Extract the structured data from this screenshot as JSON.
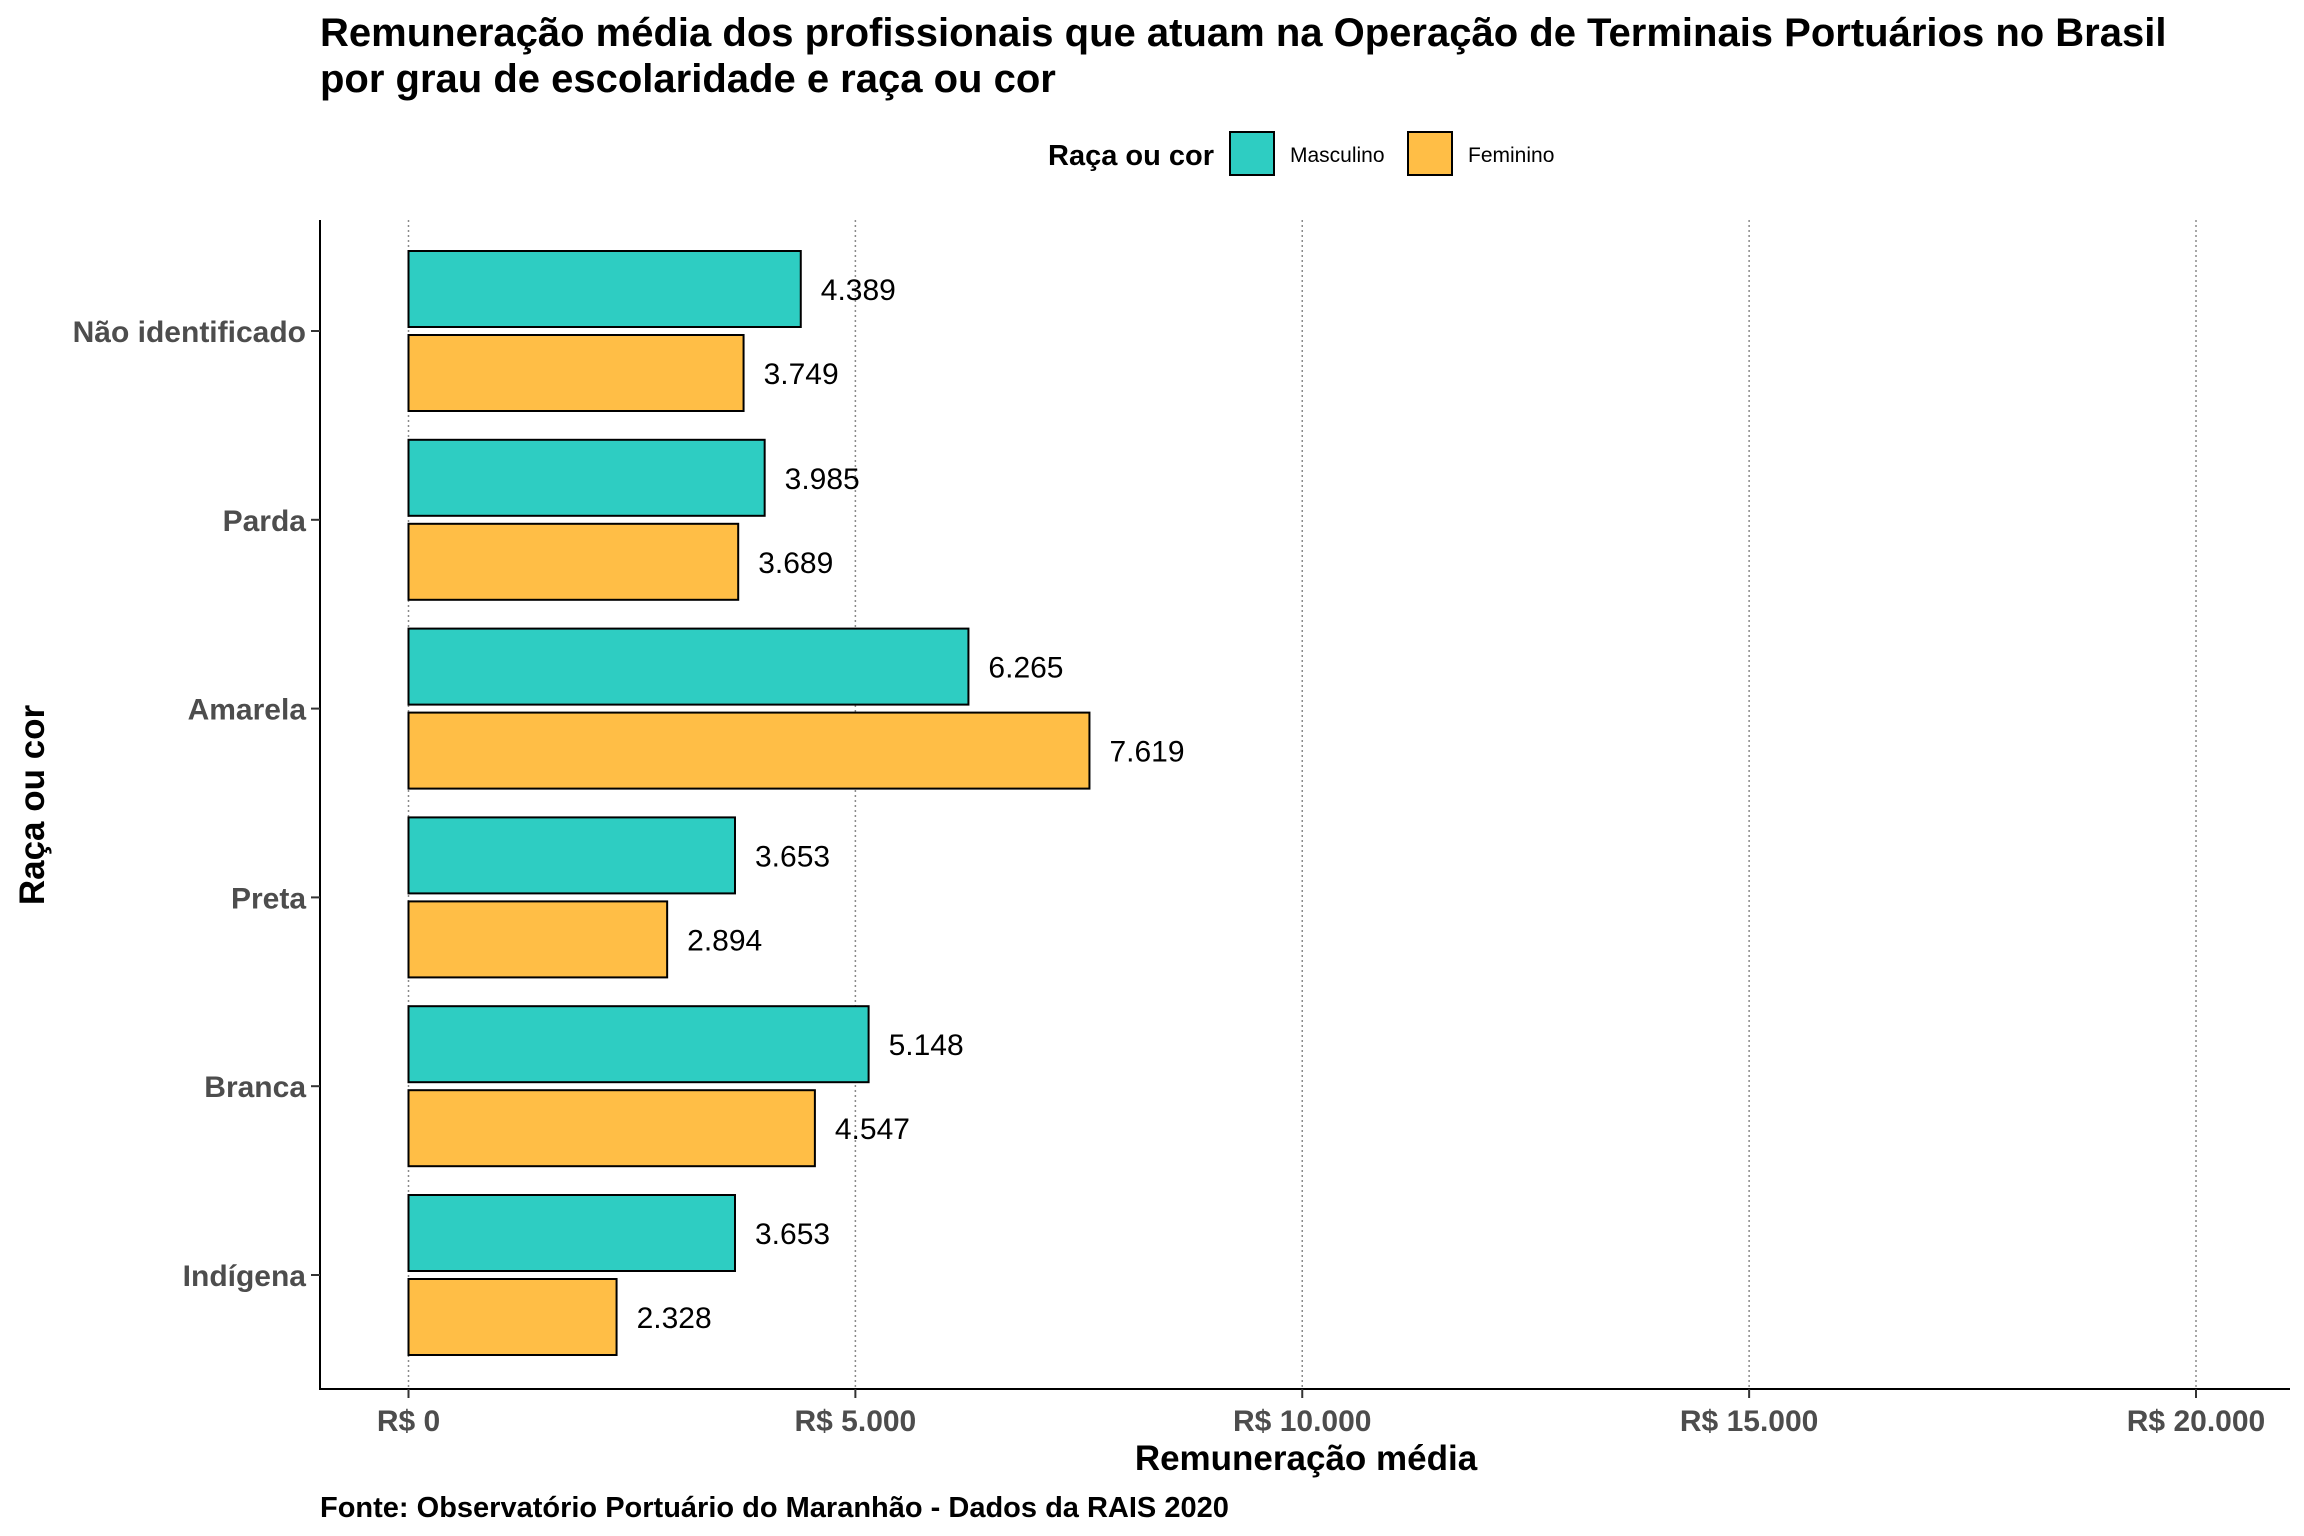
{
  "chart_data": {
    "type": "bar",
    "orientation": "horizontal",
    "title": "Remuneração média dos profissionais que atuam na Operação de Terminais Portuários no Brasil",
    "subtitle": "por grau de escolaridade e raça ou cor",
    "xlabel": "Remuneração média",
    "ylabel": "Raça ou cor",
    "caption": "Fonte: Observatório Portuário do Maranhão - Dados da RAIS 2020",
    "legend": {
      "title": "Raça ou cor",
      "position": "top"
    },
    "categories": [
      "Não identificado",
      "Parda",
      "Amarela",
      "Preta",
      "Branca",
      "Indígena"
    ],
    "series": [
      {
        "name": "Masculino",
        "color": "#2ECDC2",
        "values": [
          4389,
          3985,
          6265,
          3653,
          5148,
          3653
        ],
        "labels": [
          "4.389",
          "3.985",
          "6.265",
          "3.653",
          "5.148",
          "3.653"
        ]
      },
      {
        "name": "Feminino",
        "color": "#FFBE46",
        "values": [
          3749,
          3689,
          7619,
          2894,
          4547,
          2328
        ],
        "labels": [
          "3.749",
          "3.689",
          "7.619",
          "2.894",
          "4.547",
          "2.328"
        ]
      }
    ],
    "xlim": [
      -1000,
      21000
    ],
    "xticks": [
      0,
      5000,
      10000,
      15000,
      20000
    ],
    "xtick_labels": [
      "R$ 0",
      "R$ 5.000",
      "R$ 10.000",
      "R$ 15.000",
      "R$ 20.000"
    ],
    "grid": {
      "x_major": true,
      "style": "dotted"
    }
  }
}
